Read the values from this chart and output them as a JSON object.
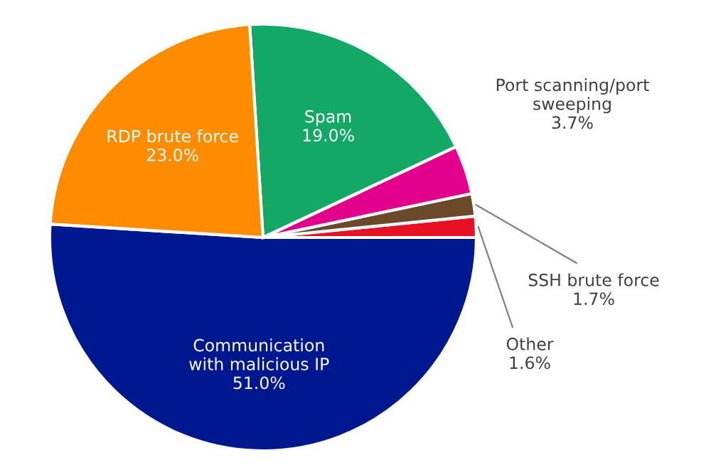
{
  "chart_data": {
    "type": "pie",
    "categories": [
      "Communication\nwith malicious IP",
      "Other",
      "SSH brute force",
      "Port scanning/port\nsweeping",
      "Spam",
      "RDP brute force"
    ],
    "values": [
      51.0,
      1.6,
      1.7,
      3.7,
      19.0,
      23.0
    ],
    "value_labels": [
      "51.0%",
      "1.6%",
      "1.7%",
      "3.7%",
      "19.0%",
      "23.0%"
    ],
    "colors": [
      "#00188f",
      "#e81123",
      "#6b4a2b",
      "#e3008c",
      "#13a866",
      "#ff8c00"
    ]
  }
}
